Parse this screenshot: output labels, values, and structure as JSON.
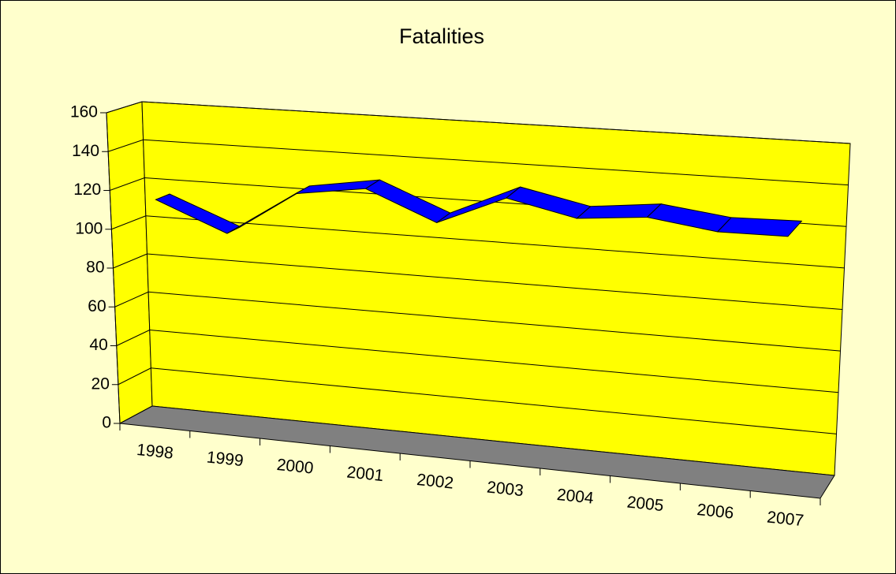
{
  "chart_data": {
    "type": "line3d",
    "title": "Fatalities",
    "categories": [
      "1998",
      "1999",
      "2000",
      "2001",
      "2002",
      "2003",
      "2004",
      "2005",
      "2006",
      "2007"
    ],
    "series": [
      {
        "name": "Fatalities",
        "color": "#0000ff",
        "values": [
          115,
          101,
          125,
          131,
          117,
          133,
          126,
          130,
          126,
          127
        ]
      }
    ],
    "ylim": [
      0,
      160
    ],
    "yticks": [
      0,
      20,
      40,
      60,
      80,
      100,
      120,
      140,
      160
    ],
    "grid": true
  }
}
